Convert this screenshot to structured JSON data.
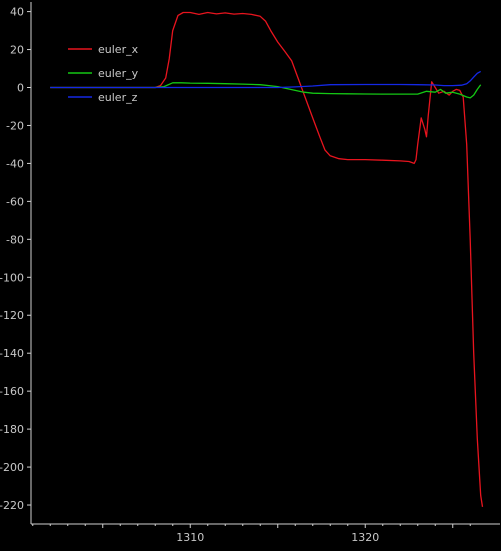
{
  "chart_data": {
    "type": "line",
    "title": "",
    "xlabel": "",
    "ylabel": "",
    "xlim": [
      1300.9,
      1326.9
    ],
    "ylim": [
      -230,
      44
    ],
    "xticks": [
      1305,
      1310,
      1315,
      1320,
      1325
    ],
    "xtick_labels": [
      "",
      "1310",
      "",
      "1320",
      ""
    ],
    "yticks": [
      40,
      20,
      0,
      -20,
      -40,
      -60,
      -80,
      -100,
      -120,
      -140,
      -160,
      -180,
      -200,
      -220
    ],
    "ytick_labels": [
      "40",
      "20",
      "0",
      "-20",
      "-40",
      "-60",
      "-80",
      "-100",
      "-120",
      "-140",
      "-160",
      "-180",
      "-200",
      "-220"
    ],
    "grid": false,
    "legend_position": "top-left",
    "background": "#000000",
    "axis_color": "#d0d0d0",
    "text_color": "#c8c8c8",
    "series": [
      {
        "name": "euler_x",
        "color": "#e8141e",
        "x": [
          1302.0,
          1306.0,
          1308.0,
          1308.3,
          1308.6,
          1308.8,
          1309.0,
          1309.3,
          1309.6,
          1310.0,
          1310.5,
          1311.0,
          1311.5,
          1312.0,
          1312.5,
          1313.0,
          1313.5,
          1314.0,
          1314.3,
          1314.6,
          1315.0,
          1315.4,
          1315.8,
          1316.2,
          1316.6,
          1317.0,
          1317.4,
          1317.7,
          1318.0,
          1318.5,
          1319.0,
          1320.0,
          1321.0,
          1322.0,
          1322.5,
          1322.8,
          1322.9,
          1323.0,
          1323.2,
          1323.4,
          1323.5,
          1323.6,
          1323.8,
          1324.0,
          1324.2,
          1324.5,
          1324.8,
          1325.0,
          1325.2,
          1325.4,
          1325.6,
          1325.8,
          1326.0,
          1326.2,
          1326.4,
          1326.5,
          1326.6,
          1326.7
        ],
        "y": [
          0.0,
          0.0,
          0.0,
          1.0,
          5.0,
          15.0,
          30.0,
          38.0,
          39.5,
          39.5,
          38.5,
          39.5,
          38.8,
          39.3,
          38.7,
          39.0,
          38.5,
          37.5,
          35.0,
          30.0,
          24.0,
          19.0,
          14.0,
          4.0,
          -6.0,
          -16.0,
          -26.0,
          -33.0,
          -36.0,
          -37.5,
          -38.0,
          -38.0,
          -38.3,
          -38.7,
          -39.0,
          -40.0,
          -38.0,
          -30.0,
          -16.0,
          -22.0,
          -26.0,
          -15.0,
          3.0,
          0.0,
          -3.0,
          -2.0,
          -4.0,
          -2.0,
          -1.0,
          -1.5,
          -5.0,
          -30.0,
          -80.0,
          -140.0,
          -185.0,
          -200.0,
          -215.0,
          -221.0
        ]
      },
      {
        "name": "euler_y",
        "color": "#14c814",
        "x": [
          1302.0,
          1306.0,
          1308.0,
          1308.5,
          1309.0,
          1309.5,
          1310.0,
          1311.0,
          1312.0,
          1313.0,
          1314.0,
          1314.5,
          1315.0,
          1315.5,
          1316.0,
          1316.5,
          1317.0,
          1318.0,
          1319.0,
          1320.0,
          1321.0,
          1322.0,
          1323.0,
          1323.5,
          1324.0,
          1324.3,
          1324.6,
          1325.0,
          1325.4,
          1325.8,
          1326.0,
          1326.2,
          1326.4,
          1326.6
        ],
        "y": [
          0.0,
          0.0,
          0.0,
          0.5,
          2.5,
          2.5,
          2.3,
          2.2,
          2.0,
          1.8,
          1.5,
          1.0,
          0.5,
          -0.5,
          -1.5,
          -2.5,
          -3.0,
          -3.2,
          -3.3,
          -3.4,
          -3.5,
          -3.5,
          -3.5,
          -2.0,
          -2.5,
          -1.0,
          -3.0,
          -2.5,
          -3.5,
          -5.0,
          -5.5,
          -4.0,
          -1.0,
          1.5
        ]
      },
      {
        "name": "euler_z",
        "color": "#1428e6",
        "x": [
          1302.0,
          1306.0,
          1308.0,
          1309.0,
          1311.0,
          1313.0,
          1315.0,
          1316.0,
          1317.0,
          1318.0,
          1320.0,
          1322.0,
          1323.0,
          1324.0,
          1324.5,
          1325.0,
          1325.5,
          1325.8,
          1326.0,
          1326.2,
          1326.4,
          1326.6
        ],
        "y": [
          0.0,
          0.0,
          0.0,
          0.0,
          0.0,
          0.0,
          0.0,
          0.3,
          0.8,
          1.5,
          1.6,
          1.6,
          1.5,
          1.3,
          1.0,
          1.0,
          1.2,
          2.0,
          3.5,
          5.5,
          7.5,
          8.5
        ]
      }
    ]
  }
}
